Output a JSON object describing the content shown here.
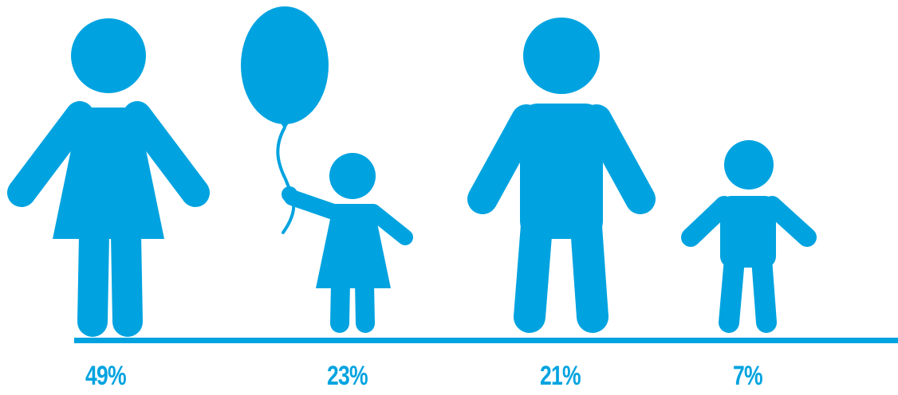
{
  "accent_color": "#00a3e0",
  "figures": [
    {
      "icon": "woman-icon",
      "percent": "49%"
    },
    {
      "icon": "girl-with-balloon-icon",
      "percent": "23%"
    },
    {
      "icon": "man-icon",
      "percent": "21%"
    },
    {
      "icon": "boy-icon",
      "percent": "7%"
    }
  ]
}
